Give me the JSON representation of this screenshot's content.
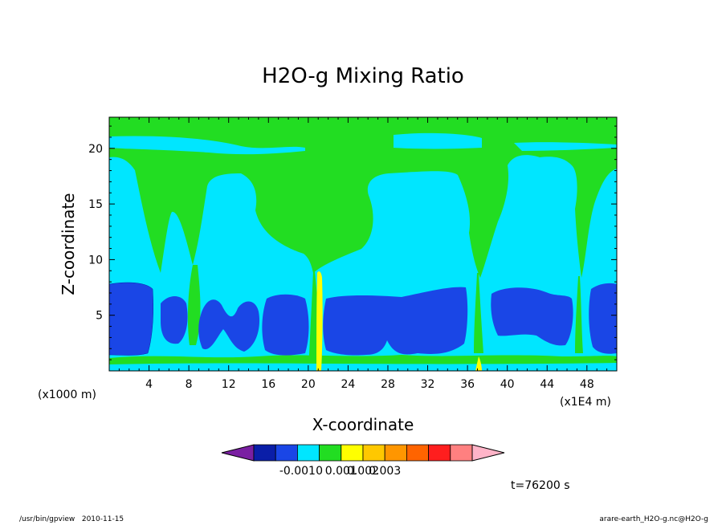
{
  "chart_data": {
    "type": "contour",
    "title": "H2O-g Mixing Ratio",
    "xlabel": "X-coordinate",
    "ylabel": "Z-coordinate",
    "x_unit_left": "(x1000 m)",
    "x_unit_right": "(x1E4 m)",
    "x_ticks": [
      "4",
      "8",
      "12",
      "16",
      "20",
      "24",
      "28",
      "32",
      "36",
      "40",
      "44",
      "48"
    ],
    "y_ticks": [
      "5",
      "10",
      "15",
      "20"
    ],
    "xlim": [
      0,
      51
    ],
    "ylim": [
      0,
      22.8
    ],
    "colorbar": {
      "colors": [
        "#7a1fa2",
        "#0a1ea8",
        "#1a46e6",
        "#00e6ff",
        "#22dd22",
        "#ffff00",
        "#ffc800",
        "#ff9600",
        "#ff6400",
        "#ff1e1e",
        "#ff8080",
        "#ffb4c8"
      ],
      "tick_labels": [
        "-0.001",
        "0",
        "0.001",
        "0.002",
        "0.003"
      ]
    },
    "time_label": "t=76200 s"
  },
  "footer": {
    "left_path": "/usr/bin/gpview",
    "left_date": "2010-11-15",
    "right_file": "arare-earth_H2O-g.nc@H2O-g"
  }
}
